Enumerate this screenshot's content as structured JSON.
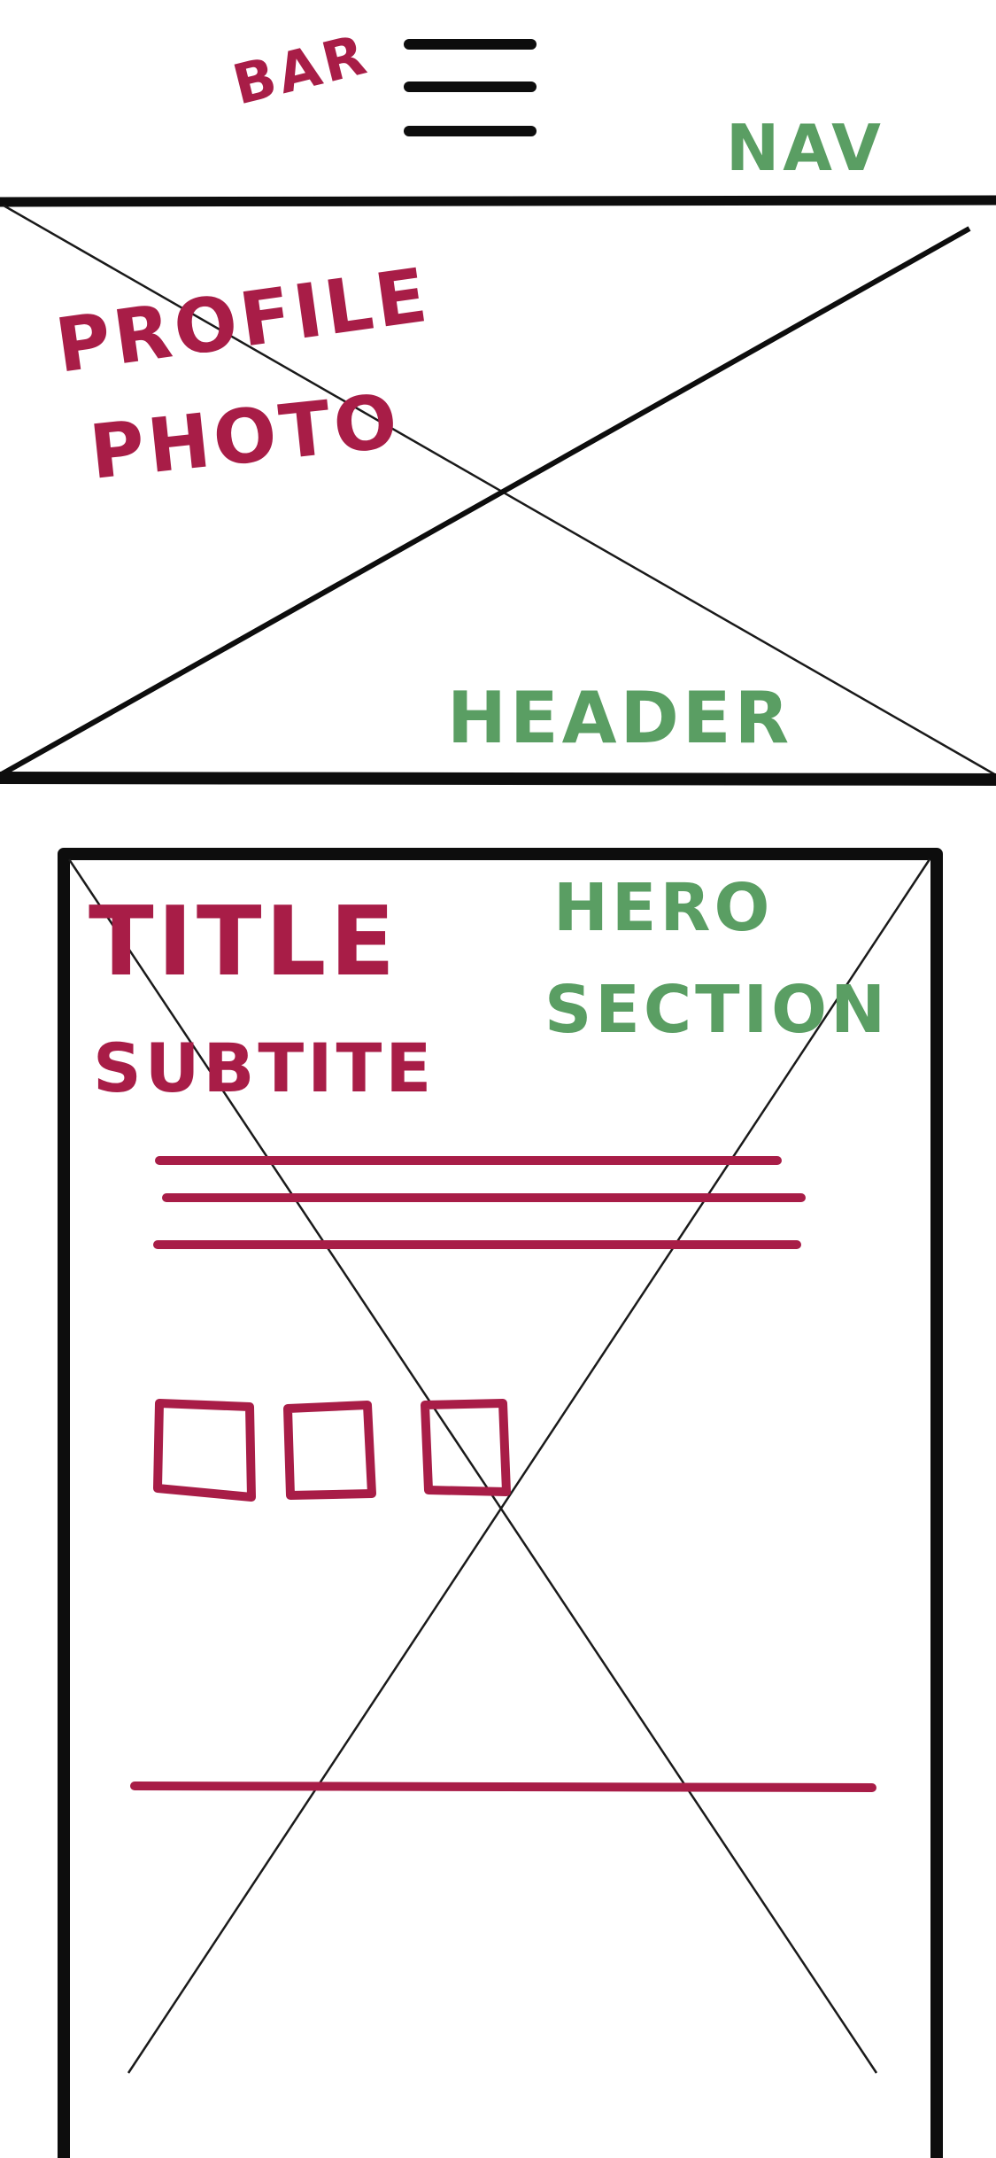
{
  "colors": {
    "ink": "#0d0d0d",
    "annotation_red": "#a81d47",
    "annotation_green": "#5a9e63",
    "background": "#ffffff"
  },
  "nav": {
    "menu_icon": "hamburger-icon",
    "menu_label": "BAR",
    "section_label": "NAV"
  },
  "header": {
    "photo_placeholder_icon": "image-placeholder-cross",
    "photo_label_line1": "PROFILE",
    "photo_label_line2": "PHOTO",
    "section_label": "HEADER"
  },
  "hero": {
    "placeholder_icon": "image-placeholder-cross",
    "title_label": "TITLE",
    "subtitle_label": "SUBTITE",
    "section_label_line1": "HERO",
    "section_label_line2": "SECTION",
    "text_line_count": 3,
    "button_icon": "square-button-icon",
    "button_count": 3
  }
}
